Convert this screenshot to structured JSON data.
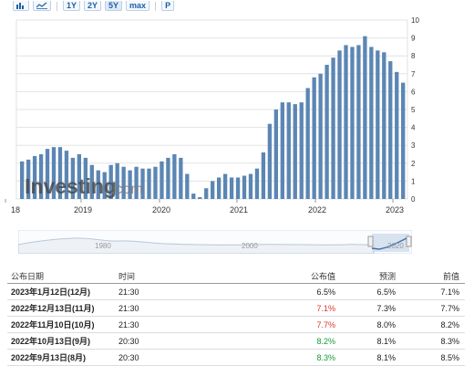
{
  "toolbar": {
    "bar_icon": "bar-chart-icon",
    "line_icon": "line-chart-icon",
    "ranges": [
      "1Y",
      "2Y",
      "5Y",
      "max"
    ],
    "active_range": "5Y",
    "p_label": "P"
  },
  "colors": {
    "bar": "#5b86b4",
    "bar_light": "#9cb7d6",
    "grid": "#e3e3e3",
    "actual_up": "#e0352b",
    "actual_down": "#1a9a36",
    "navigator_fill": "#dce6f1",
    "navigator_line": "#a8bdd6"
  },
  "watermark": {
    "brand": "Investing",
    "suffix": ".com"
  },
  "chart_data": {
    "type": "bar",
    "x_tick_labels": [
      "18",
      "2019",
      "2020",
      "2021",
      "2022",
      "2023"
    ],
    "y_tick_labels": [
      "0",
      "1",
      "2",
      "3",
      "4",
      "5",
      "6",
      "7",
      "8",
      "9",
      "10"
    ],
    "ylim": [
      0,
      10
    ],
    "values": [
      2.1,
      2.2,
      2.4,
      2.5,
      2.8,
      2.9,
      2.9,
      2.7,
      2.3,
      2.5,
      2.3,
      1.9,
      1.6,
      1.5,
      1.9,
      2.0,
      1.8,
      1.6,
      1.8,
      1.7,
      1.7,
      1.8,
      2.1,
      2.3,
      2.5,
      2.3,
      1.4,
      0.3,
      0.1,
      0.6,
      1.0,
      1.2,
      1.4,
      1.2,
      1.2,
      1.3,
      1.4,
      1.7,
      2.6,
      4.2,
      5.0,
      5.4,
      5.4,
      5.3,
      5.4,
      6.2,
      6.8,
      7.0,
      7.5,
      7.9,
      8.3,
      8.6,
      8.5,
      8.6,
      9.1,
      8.5,
      8.3,
      8.2,
      7.7,
      7.1,
      6.5
    ],
    "grid": true
  },
  "navigator": {
    "labels": [
      "1980",
      "2000",
      "2020"
    ]
  },
  "table": {
    "headers": {
      "date": "公布日期",
      "time": "时间",
      "actual": "公布值",
      "forecast": "预测",
      "previous": "前值"
    },
    "rows": [
      {
        "date": "2023年1月12日(12月)",
        "time": "21:30",
        "actual": "6.5%",
        "actual_color": "black",
        "forecast": "6.5%",
        "previous": "7.1%"
      },
      {
        "date": "2022年12月13日(11月)",
        "time": "21:30",
        "actual": "7.1%",
        "actual_color": "red",
        "forecast": "7.3%",
        "previous": "7.7%"
      },
      {
        "date": "2022年11月10日(10月)",
        "time": "21:30",
        "actual": "7.7%",
        "actual_color": "red",
        "forecast": "8.0%",
        "previous": "8.2%"
      },
      {
        "date": "2022年10月13日(9月)",
        "time": "20:30",
        "actual": "8.2%",
        "actual_color": "green",
        "forecast": "8.1%",
        "previous": "8.3%"
      },
      {
        "date": "2022年9月13日(8月)",
        "time": "20:30",
        "actual": "8.3%",
        "actual_color": "green",
        "forecast": "8.1%",
        "previous": "8.5%"
      }
    ]
  }
}
